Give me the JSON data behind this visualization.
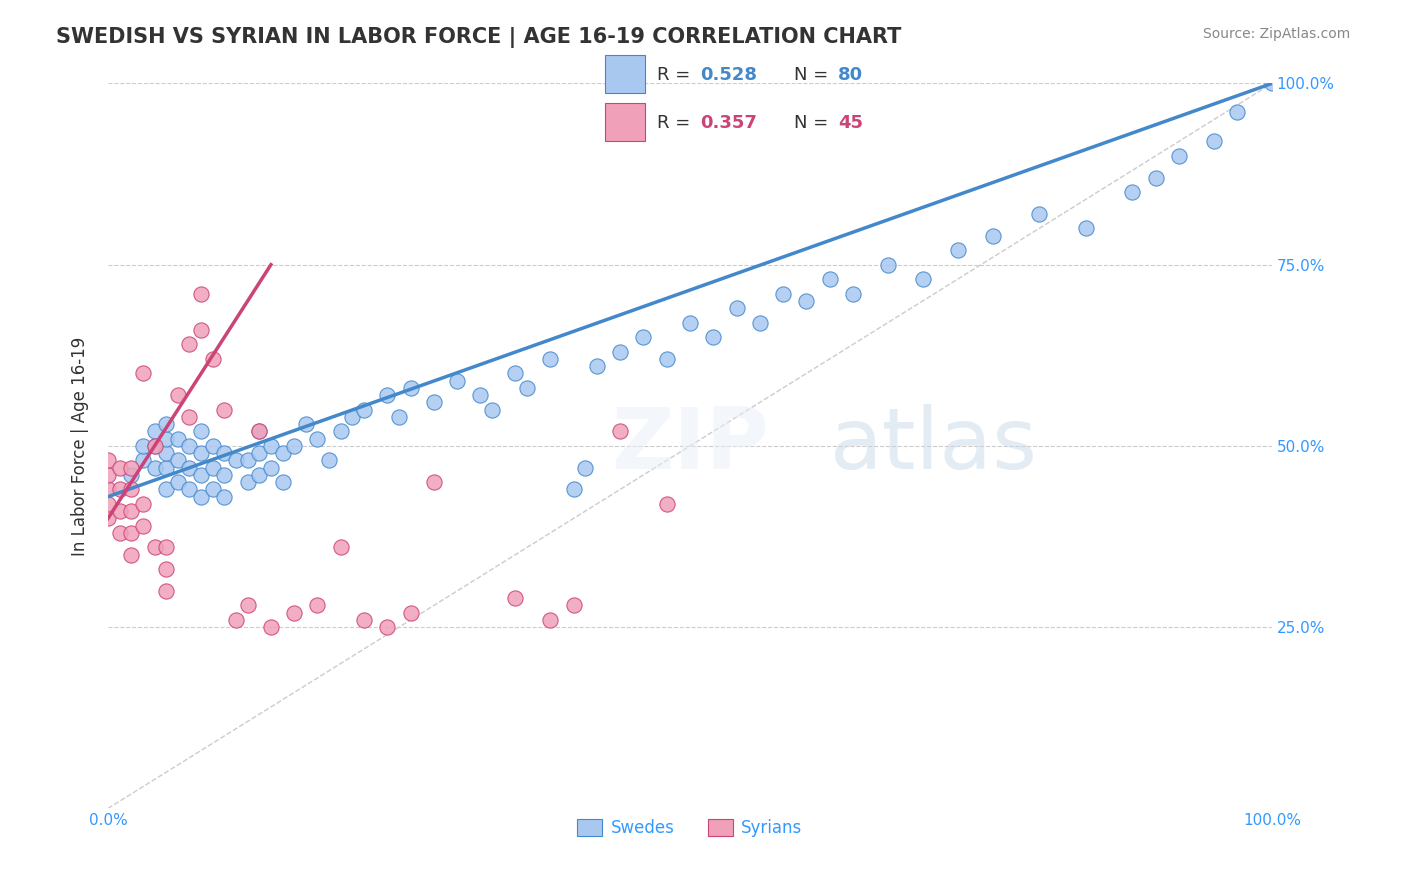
{
  "title": "SWEDISH VS SYRIAN IN LABOR FORCE | AGE 16-19 CORRELATION CHART",
  "source": "Source: ZipAtlas.com",
  "xlabel": "",
  "ylabel": "In Labor Force | Age 16-19",
  "xlim": [
    0.0,
    1.0
  ],
  "ylim": [
    0.0,
    1.0
  ],
  "x_tick_labels": [
    "0.0%",
    "100.0%"
  ],
  "y_tick_labels": [
    "25.0%",
    "50.0%",
    "75.0%",
    "100.0%"
  ],
  "y_tick_positions": [
    0.25,
    0.5,
    0.75,
    1.0
  ],
  "blue_R": 0.528,
  "blue_N": 80,
  "pink_R": 0.357,
  "pink_N": 45,
  "blue_color": "#a8c8f0",
  "pink_color": "#f0a0b8",
  "blue_line_color": "#4488cc",
  "pink_line_color": "#cc4477",
  "dashed_line_color": "#cccccc",
  "legend_blue_label": "Swedes",
  "legend_pink_label": "Syrians",
  "watermark": "ZIPatlas",
  "blue_scatter_x": [
    0.02,
    0.03,
    0.03,
    0.04,
    0.04,
    0.04,
    0.05,
    0.05,
    0.05,
    0.05,
    0.05,
    0.06,
    0.06,
    0.06,
    0.07,
    0.07,
    0.07,
    0.08,
    0.08,
    0.08,
    0.08,
    0.09,
    0.09,
    0.09,
    0.1,
    0.1,
    0.1,
    0.11,
    0.12,
    0.12,
    0.13,
    0.13,
    0.13,
    0.14,
    0.14,
    0.15,
    0.15,
    0.16,
    0.17,
    0.18,
    0.19,
    0.2,
    0.21,
    0.22,
    0.24,
    0.25,
    0.26,
    0.28,
    0.3,
    0.32,
    0.33,
    0.35,
    0.36,
    0.38,
    0.4,
    0.41,
    0.42,
    0.44,
    0.46,
    0.48,
    0.5,
    0.52,
    0.54,
    0.56,
    0.58,
    0.6,
    0.62,
    0.64,
    0.67,
    0.7,
    0.73,
    0.76,
    0.8,
    0.84,
    0.88,
    0.9,
    0.92,
    0.95,
    0.97,
    1.0
  ],
  "blue_scatter_y": [
    0.46,
    0.48,
    0.5,
    0.47,
    0.5,
    0.52,
    0.44,
    0.47,
    0.49,
    0.51,
    0.53,
    0.45,
    0.48,
    0.51,
    0.44,
    0.47,
    0.5,
    0.43,
    0.46,
    0.49,
    0.52,
    0.44,
    0.47,
    0.5,
    0.43,
    0.46,
    0.49,
    0.48,
    0.45,
    0.48,
    0.46,
    0.49,
    0.52,
    0.47,
    0.5,
    0.45,
    0.49,
    0.5,
    0.53,
    0.51,
    0.48,
    0.52,
    0.54,
    0.55,
    0.57,
    0.54,
    0.58,
    0.56,
    0.59,
    0.57,
    0.55,
    0.6,
    0.58,
    0.62,
    0.44,
    0.47,
    0.61,
    0.63,
    0.65,
    0.62,
    0.67,
    0.65,
    0.69,
    0.67,
    0.71,
    0.7,
    0.73,
    0.71,
    0.75,
    0.73,
    0.77,
    0.79,
    0.82,
    0.8,
    0.85,
    0.87,
    0.9,
    0.92,
    0.96,
    1.0
  ],
  "pink_scatter_x": [
    0.0,
    0.0,
    0.0,
    0.0,
    0.0,
    0.01,
    0.01,
    0.01,
    0.01,
    0.02,
    0.02,
    0.02,
    0.02,
    0.02,
    0.03,
    0.03,
    0.03,
    0.04,
    0.04,
    0.05,
    0.05,
    0.05,
    0.06,
    0.07,
    0.07,
    0.08,
    0.08,
    0.09,
    0.1,
    0.11,
    0.12,
    0.13,
    0.14,
    0.16,
    0.18,
    0.2,
    0.22,
    0.24,
    0.26,
    0.28,
    0.35,
    0.38,
    0.4,
    0.44,
    0.48
  ],
  "pink_scatter_y": [
    0.4,
    0.42,
    0.44,
    0.46,
    0.48,
    0.38,
    0.41,
    0.44,
    0.47,
    0.35,
    0.38,
    0.41,
    0.44,
    0.47,
    0.39,
    0.42,
    0.6,
    0.36,
    0.5,
    0.3,
    0.33,
    0.36,
    0.57,
    0.54,
    0.64,
    0.66,
    0.71,
    0.62,
    0.55,
    0.26,
    0.28,
    0.52,
    0.25,
    0.27,
    0.28,
    0.36,
    0.26,
    0.25,
    0.27,
    0.45,
    0.29,
    0.26,
    0.28,
    0.52,
    0.42
  ],
  "blue_line_x": [
    0.0,
    1.0
  ],
  "blue_line_y": [
    0.43,
    1.0
  ],
  "pink_line_x": [
    0.0,
    0.14
  ],
  "pink_line_y": [
    0.4,
    0.75
  ],
  "diag_line_x": [
    0.0,
    1.0
  ],
  "diag_line_y": [
    0.0,
    1.0
  ]
}
